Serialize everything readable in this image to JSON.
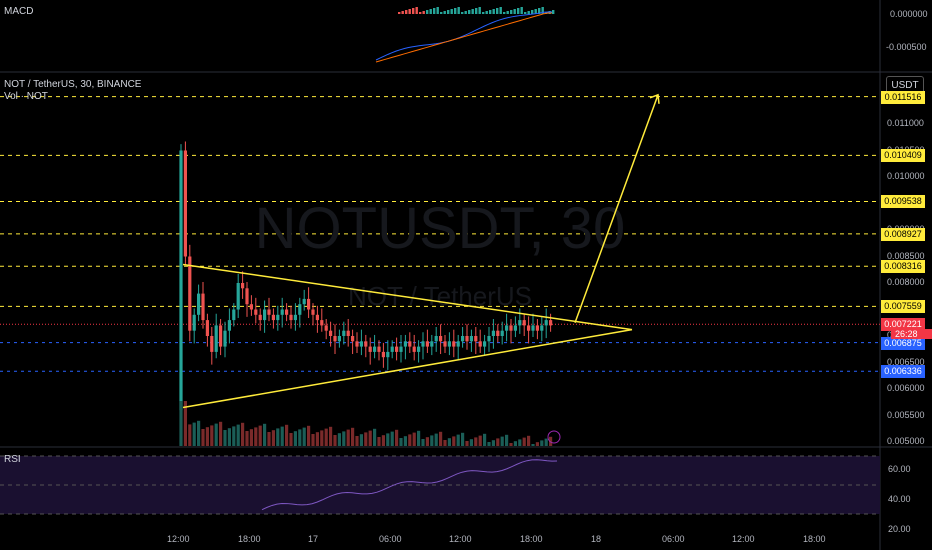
{
  "chart_data": {
    "type": "candlestick",
    "symbol_title": "NOT / TetherUS, 30, BINANCE",
    "volume_label": "Vol · NOT",
    "watermark_symbol": "NOTUSDT, 30",
    "watermark_name": "NOT / TetherUS",
    "currency": "USDT",
    "macd_label": "MACD",
    "rsi_label": "RSI",
    "x_ticks": [
      "12:00",
      "18:00",
      "17",
      "06:00",
      "12:00",
      "18:00",
      "18",
      "06:00",
      "12:00",
      "18:00"
    ],
    "price_ticks": [
      "0.011000",
      "0.010500",
      "0.010000",
      "0.009000",
      "0.008500",
      "0.008000",
      "0.007500",
      "0.007000",
      "0.006500",
      "0.006000",
      "0.005500",
      "0.005000"
    ],
    "macd_ticks": [
      "0.000000",
      "-0.000500"
    ],
    "rsi_ticks": [
      "60.00",
      "40.00",
      "20.00"
    ],
    "level_labels": [
      {
        "price": 0.011516,
        "text": "0.011516",
        "color": "#ffeb3b"
      },
      {
        "price": 0.010409,
        "text": "0.010409",
        "color": "#ffeb3b"
      },
      {
        "price": 0.009538,
        "text": "0.009538",
        "color": "#ffeb3b"
      },
      {
        "price": 0.008927,
        "text": "0.008927",
        "color": "#ffeb3b"
      },
      {
        "price": 0.008316,
        "text": "0.008316",
        "color": "#ffeb3b"
      },
      {
        "price": 0.007559,
        "text": "0.007559",
        "color": "#ffeb3b"
      }
    ],
    "current_price": {
      "price": 0.007221,
      "text": "0.007221",
      "countdown": "26:28",
      "color": "#f23645"
    },
    "blue_levels": [
      {
        "price": 0.006875,
        "text": "0.006875",
        "color": "#2962ff"
      },
      {
        "price": 0.006336,
        "text": "0.006336",
        "color": "#2962ff"
      }
    ],
    "closes": [
      0.0105,
      0.0085,
      0.0071,
      0.0074,
      0.0078,
      0.0073,
      0.007,
      0.0067,
      0.0072,
      0.0068,
      0.0071,
      0.0073,
      0.0075,
      0.008,
      0.0079,
      0.0076,
      0.0075,
      0.0074,
      0.0073,
      0.0075,
      0.0074,
      0.0073,
      0.0074,
      0.0075,
      0.0074,
      0.0073,
      0.0074,
      0.0076,
      0.0077,
      0.0075,
      0.0074,
      0.0073,
      0.0072,
      0.0071,
      0.007,
      0.0069,
      0.007,
      0.0071,
      0.007,
      0.0069,
      0.0068,
      0.0069,
      0.0068,
      0.0067,
      0.0068,
      0.0067,
      0.0066,
      0.0067,
      0.0068,
      0.0067,
      0.0068,
      0.0069,
      0.0068,
      0.0067,
      0.0068,
      0.0069,
      0.0068,
      0.0069,
      0.007,
      0.0069,
      0.0068,
      0.0069,
      0.0068,
      0.0069,
      0.007,
      0.0069,
      0.007,
      0.0069,
      0.0068,
      0.0069,
      0.007,
      0.0071,
      0.007,
      0.0071,
      0.0072,
      0.0071,
      0.0072,
      0.0073,
      0.0072,
      0.0071,
      0.0072,
      0.0071,
      0.0072,
      0.0073,
      0.0072
    ],
    "triangle": {
      "upper_start": 0.00835,
      "lower_start": 0.00565,
      "apex": 0.00712
    },
    "projection_target": 0.01155,
    "colors": {
      "up": "#26a69a",
      "down": "#ef5350",
      "macd": "#2962ff",
      "signal": "#ff6d00",
      "rsi": "#7e57c2",
      "drawing": "#ffeb3b"
    }
  }
}
